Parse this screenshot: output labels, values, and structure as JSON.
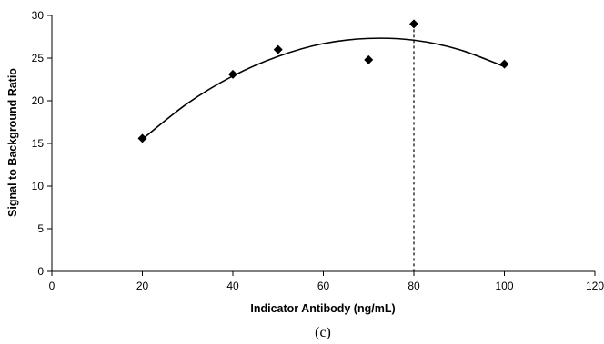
{
  "chart_data": {
    "type": "scatter",
    "title": "",
    "xlabel": "Indicator Antibody (ng/mL)",
    "ylabel": "Signal to Background Ratio",
    "caption": "(c)",
    "xlim": [
      0,
      120
    ],
    "ylim": [
      0,
      30
    ],
    "x_ticks": [
      0,
      20,
      40,
      60,
      80,
      100,
      120
    ],
    "y_ticks": [
      0,
      5,
      10,
      15,
      20,
      25,
      30
    ],
    "grid": false,
    "legend": "none",
    "series": [
      {
        "marker": "diamond",
        "color": "#000000",
        "points": [
          {
            "x": 20,
            "y": 15.6
          },
          {
            "x": 40,
            "y": 23.1
          },
          {
            "x": 50,
            "y": 26.0
          },
          {
            "x": 70,
            "y": 24.8
          },
          {
            "x": 80,
            "y": 29.0
          },
          {
            "x": 100,
            "y": 24.3
          }
        ]
      }
    ],
    "trendline": {
      "type": "polynomial-2",
      "color": "#000000",
      "points": [
        {
          "x": 20,
          "y": 15.5
        },
        {
          "x": 30,
          "y": 19.7
        },
        {
          "x": 40,
          "y": 22.9
        },
        {
          "x": 50,
          "y": 25.2
        },
        {
          "x": 60,
          "y": 26.7
        },
        {
          "x": 70,
          "y": 27.3
        },
        {
          "x": 80,
          "y": 27.1
        },
        {
          "x": 90,
          "y": 26.0
        },
        {
          "x": 100,
          "y": 24.0
        }
      ]
    },
    "reference_line": {
      "x": 80,
      "y": 29.0,
      "style": "dashed",
      "color": "#000000"
    }
  }
}
